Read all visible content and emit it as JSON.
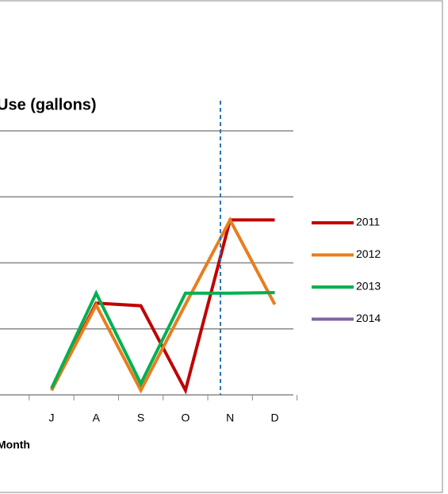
{
  "chart_data": {
    "type": "line",
    "title": "Use (gallons)",
    "x_label": "Month",
    "categories": [
      "J",
      "A",
      "S",
      "O",
      "N",
      "D"
    ],
    "series": [
      {
        "name": "2011",
        "color": "#c00000",
        "values": [
          0.07,
          1.39,
          1.35,
          0.07,
          2.65,
          2.65
        ]
      },
      {
        "name": "2012",
        "color": "#e87d1e",
        "values": [
          0.07,
          1.36,
          0.07,
          1.37,
          2.65,
          1.37
        ]
      },
      {
        "name": "2013",
        "color": "#00b050",
        "values": [
          0.1,
          1.54,
          0.17,
          1.54,
          1.54,
          1.55
        ]
      },
      {
        "name": "2014",
        "color": "#8064a2",
        "values": [
          null,
          null,
          null,
          null,
          null,
          null
        ]
      }
    ],
    "ylim": [
      0,
      4
    ],
    "yticks": [
      0,
      1,
      2,
      3,
      4
    ],
    "grid": true,
    "legend": "right"
  }
}
